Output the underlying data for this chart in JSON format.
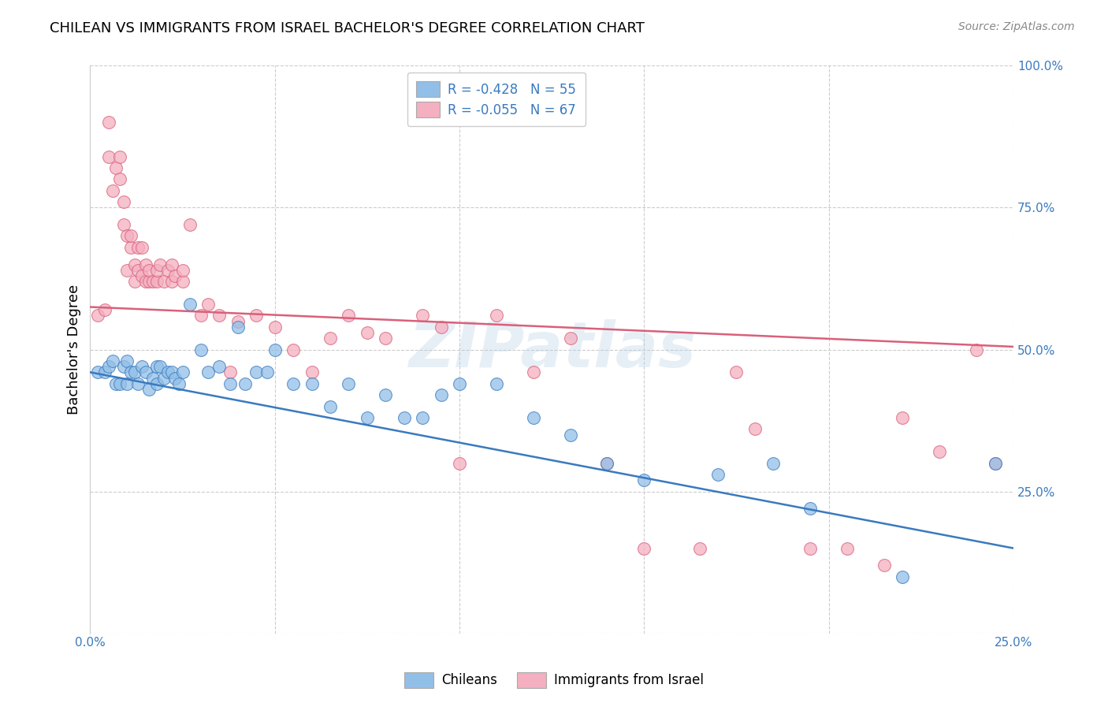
{
  "title": "CHILEAN VS IMMIGRANTS FROM ISRAEL BACHELOR'S DEGREE CORRELATION CHART",
  "source": "Source: ZipAtlas.com",
  "ylabel": "Bachelor's Degree",
  "xmin": 0.0,
  "xmax": 0.25,
  "ymin": 0.0,
  "ymax": 1.0,
  "x_ticks": [
    0.0,
    0.05,
    0.1,
    0.15,
    0.2,
    0.25
  ],
  "x_tick_labels": [
    "0.0%",
    "",
    "",
    "",
    "",
    "25.0%"
  ],
  "y_ticks": [
    0.0,
    0.25,
    0.5,
    0.75,
    1.0
  ],
  "y_tick_labels": [
    "",
    "25.0%",
    "50.0%",
    "75.0%",
    "100.0%"
  ],
  "legend_r1": "R = -0.428",
  "legend_n1": "N = 55",
  "legend_r2": "R = -0.055",
  "legend_n2": "N = 67",
  "blue_color": "#92bfe8",
  "pink_color": "#f4afc0",
  "line_blue": "#3a7abf",
  "line_pink": "#d9607a",
  "watermark": "ZIPatlas",
  "chileans_label": "Chileans",
  "israel_label": "Immigrants from Israel",
  "blue_scatter_x": [
    0.002,
    0.004,
    0.005,
    0.006,
    0.007,
    0.008,
    0.009,
    0.01,
    0.01,
    0.011,
    0.012,
    0.013,
    0.014,
    0.015,
    0.016,
    0.017,
    0.018,
    0.018,
    0.019,
    0.02,
    0.021,
    0.022,
    0.023,
    0.024,
    0.025,
    0.027,
    0.03,
    0.032,
    0.035,
    0.038,
    0.04,
    0.042,
    0.045,
    0.048,
    0.05,
    0.055,
    0.06,
    0.065,
    0.07,
    0.075,
    0.08,
    0.085,
    0.09,
    0.095,
    0.1,
    0.11,
    0.12,
    0.13,
    0.14,
    0.15,
    0.17,
    0.185,
    0.195,
    0.22,
    0.245
  ],
  "blue_scatter_y": [
    0.46,
    0.46,
    0.47,
    0.48,
    0.44,
    0.44,
    0.47,
    0.44,
    0.48,
    0.46,
    0.46,
    0.44,
    0.47,
    0.46,
    0.43,
    0.45,
    0.44,
    0.47,
    0.47,
    0.45,
    0.46,
    0.46,
    0.45,
    0.44,
    0.46,
    0.58,
    0.5,
    0.46,
    0.47,
    0.44,
    0.54,
    0.44,
    0.46,
    0.46,
    0.5,
    0.44,
    0.44,
    0.4,
    0.44,
    0.38,
    0.42,
    0.38,
    0.38,
    0.42,
    0.44,
    0.44,
    0.38,
    0.35,
    0.3,
    0.27,
    0.28,
    0.3,
    0.22,
    0.1,
    0.3
  ],
  "pink_scatter_x": [
    0.002,
    0.004,
    0.005,
    0.005,
    0.006,
    0.007,
    0.008,
    0.008,
    0.009,
    0.009,
    0.01,
    0.01,
    0.011,
    0.011,
    0.012,
    0.012,
    0.013,
    0.013,
    0.014,
    0.014,
    0.015,
    0.015,
    0.016,
    0.016,
    0.017,
    0.018,
    0.018,
    0.019,
    0.02,
    0.021,
    0.022,
    0.022,
    0.023,
    0.025,
    0.025,
    0.027,
    0.03,
    0.032,
    0.035,
    0.038,
    0.04,
    0.045,
    0.05,
    0.055,
    0.06,
    0.065,
    0.07,
    0.075,
    0.08,
    0.09,
    0.095,
    0.1,
    0.11,
    0.12,
    0.13,
    0.14,
    0.15,
    0.165,
    0.175,
    0.18,
    0.195,
    0.205,
    0.215,
    0.22,
    0.23,
    0.24,
    0.245
  ],
  "pink_scatter_y": [
    0.56,
    0.57,
    0.84,
    0.9,
    0.78,
    0.82,
    0.84,
    0.8,
    0.76,
    0.72,
    0.7,
    0.64,
    0.68,
    0.7,
    0.62,
    0.65,
    0.64,
    0.68,
    0.63,
    0.68,
    0.62,
    0.65,
    0.62,
    0.64,
    0.62,
    0.62,
    0.64,
    0.65,
    0.62,
    0.64,
    0.62,
    0.65,
    0.63,
    0.62,
    0.64,
    0.72,
    0.56,
    0.58,
    0.56,
    0.46,
    0.55,
    0.56,
    0.54,
    0.5,
    0.46,
    0.52,
    0.56,
    0.53,
    0.52,
    0.56,
    0.54,
    0.3,
    0.56,
    0.46,
    0.52,
    0.3,
    0.15,
    0.15,
    0.46,
    0.36,
    0.15,
    0.15,
    0.12,
    0.38,
    0.32,
    0.5,
    0.3
  ],
  "blue_line_x": [
    0.0,
    0.25
  ],
  "blue_line_y": [
    0.46,
    0.15
  ],
  "pink_line_x": [
    0.0,
    0.25
  ],
  "pink_line_y": [
    0.575,
    0.505
  ],
  "title_fontsize": 13,
  "source_fontsize": 10,
  "tick_fontsize": 11,
  "legend_fontsize": 12,
  "ylabel_fontsize": 13
}
